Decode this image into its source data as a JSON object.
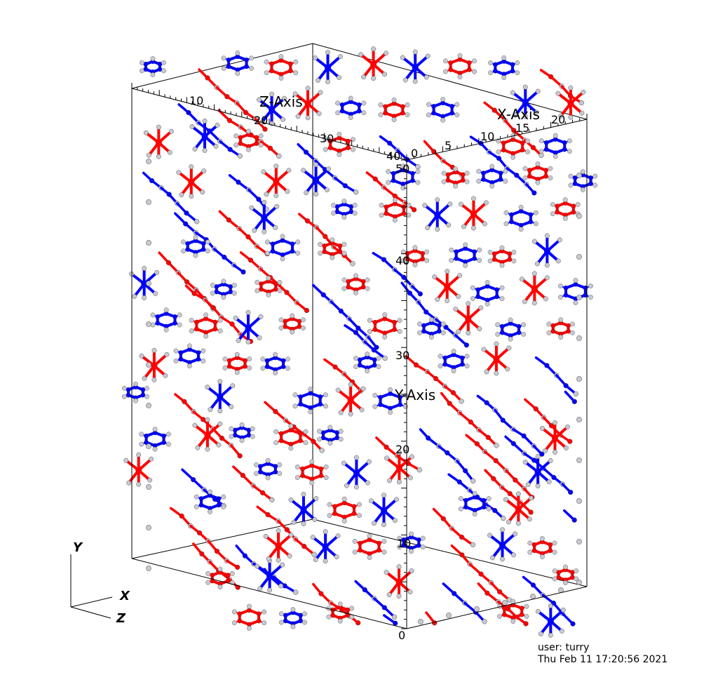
{
  "axes": {
    "x_title": "X-Axis",
    "y_title": "Y-Axis",
    "z_title": "Z-Axis",
    "x_ticks": [
      "0",
      "5",
      "10",
      "15",
      "20"
    ],
    "y_ticks": [
      "0",
      "10",
      "20",
      "30",
      "40",
      "50"
    ],
    "z_ticks": [
      "10",
      "20",
      "30",
      "40"
    ]
  },
  "triad": {
    "x": "X",
    "y": "Y",
    "z": "Z"
  },
  "colors": {
    "molecule_a": "#ff0000",
    "molecule_b": "#0000ff",
    "atom": "#c8c8d2",
    "frame": "#000000",
    "background": "#ffffff"
  },
  "footer": {
    "user": "user: turry",
    "timestamp": "Thu Feb 11 17:20:56 2021"
  }
}
